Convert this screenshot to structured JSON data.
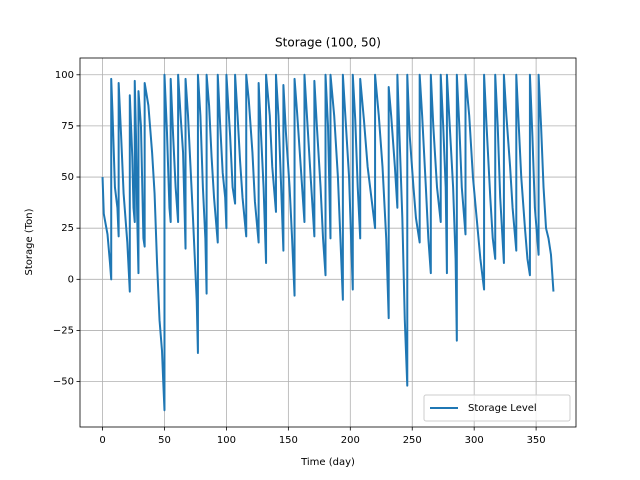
{
  "chart_data": {
    "type": "line",
    "title": "Storage (100, 50)",
    "xlabel": "Time (day)",
    "ylabel": "Storage (Ton)",
    "x": [
      0,
      1,
      4,
      6,
      7,
      7,
      8,
      10,
      12,
      13,
      13,
      15,
      17,
      20,
      22,
      22,
      24,
      25,
      26,
      26,
      27,
      28,
      29,
      29,
      31,
      33,
      34,
      34,
      37,
      40,
      42,
      44,
      46,
      48,
      49,
      50,
      50,
      52,
      54,
      55,
      55,
      57,
      59,
      61,
      61,
      63,
      65,
      67,
      67,
      69,
      71,
      73,
      76,
      77,
      77,
      79,
      81,
      83,
      84,
      84,
      86,
      88,
      90,
      93,
      93,
      95,
      97,
      99,
      100,
      100,
      103,
      105,
      107,
      107,
      109,
      111,
      113,
      116,
      116,
      118,
      121,
      123,
      126,
      126,
      128,
      130,
      132,
      132,
      135,
      137,
      140,
      140,
      142,
      144,
      146,
      146,
      148,
      151,
      153,
      155,
      155,
      157,
      160,
      163,
      163,
      165,
      168,
      171,
      171,
      173,
      176,
      178,
      180,
      180,
      182,
      184,
      184,
      187,
      190,
      192,
      194,
      194,
      196,
      199,
      202,
      202,
      204,
      206,
      208,
      208,
      211,
      214,
      217,
      220,
      220,
      223,
      226,
      229,
      231,
      231,
      233,
      236,
      238,
      238,
      240,
      242,
      244,
      246,
      246,
      248,
      251,
      253,
      256,
      256,
      258,
      261,
      263,
      265,
      265,
      267,
      270,
      273,
      273,
      275,
      277,
      278,
      278,
      280,
      283,
      285,
      286,
      286,
      288,
      290,
      293,
      293,
      296,
      299,
      302,
      305,
      308,
      308,
      310,
      313,
      315,
      317,
      317,
      319,
      321,
      324,
      324,
      326,
      329,
      331,
      334,
      334,
      336,
      338,
      341,
      343,
      345,
      345,
      347,
      349,
      352,
      352,
      354,
      356,
      358,
      360,
      362,
      364
    ],
    "series": [
      {
        "name": "Storage Level",
        "color": "#1f77b4",
        "values": [
          50,
          32,
          22,
          8,
          0,
          98,
          82,
          45,
          35,
          21,
          96,
          70,
          42,
          18,
          -6,
          90,
          60,
          35,
          28,
          97,
          70,
          30,
          3,
          92,
          75,
          20,
          16,
          96,
          85,
          62,
          42,
          8,
          -20,
          -35,
          -50,
          -64,
          100,
          72,
          35,
          28,
          98,
          70,
          45,
          28,
          100,
          80,
          62,
          15,
          98,
          80,
          55,
          30,
          -10,
          -36,
          100,
          80,
          45,
          20,
          -7,
          100,
          85,
          60,
          40,
          18,
          100,
          75,
          52,
          40,
          25,
          100,
          70,
          45,
          37,
          100,
          80,
          58,
          40,
          21,
          100,
          88,
          62,
          38,
          18,
          96,
          70,
          45,
          8,
          100,
          80,
          55,
          33,
          100,
          80,
          48,
          14,
          95,
          72,
          45,
          20,
          -8,
          98,
          82,
          55,
          28,
          100,
          80,
          50,
          21,
          97,
          75,
          45,
          20,
          2,
          100,
          75,
          20,
          100,
          80,
          50,
          20,
          -10,
          100,
          80,
          50,
          -5,
          100,
          78,
          45,
          20,
          98,
          78,
          55,
          40,
          25,
          100,
          80,
          55,
          20,
          -19,
          94,
          80,
          55,
          35,
          100,
          65,
          30,
          -20,
          -52,
          100,
          70,
          45,
          30,
          18,
          100,
          80,
          45,
          20,
          3,
          100,
          75,
          45,
          28,
          100,
          75,
          45,
          3,
          100,
          78,
          45,
          10,
          -30,
          100,
          75,
          45,
          22,
          100,
          80,
          50,
          30,
          10,
          -5,
          100,
          75,
          40,
          20,
          10,
          100,
          75,
          40,
          8,
          100,
          80,
          55,
          35,
          14,
          100,
          75,
          50,
          25,
          10,
          2,
          100,
          70,
          35,
          12,
          100,
          75,
          45,
          25,
          20,
          12,
          -6
        ]
      }
    ],
    "xlim": [
      -18.2,
      382.2
    ],
    "ylim": [
      -72.2,
      108.2
    ],
    "xticks": [
      0,
      50,
      100,
      150,
      200,
      250,
      300,
      350
    ],
    "yticks": [
      {
        "value": -50,
        "label": "−50"
      },
      {
        "value": -25,
        "label": "−25"
      },
      0,
      25,
      50,
      75,
      100
    ],
    "grid": true,
    "legend": "lower right"
  }
}
